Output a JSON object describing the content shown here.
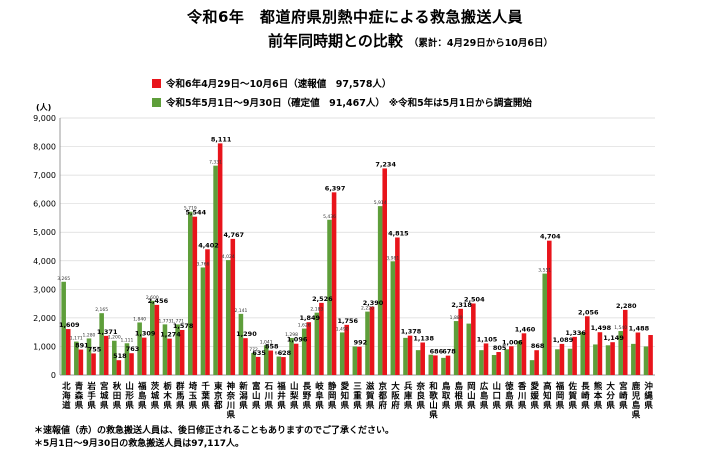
{
  "title_line1": "令和6年　都道府県別熱中症による救急搬送人員",
  "title_line2": "前年同時期との比較",
  "title_note": "（累計：4月29日から10月6日）",
  "chart_data": {
    "type": "bar",
    "ylabel": "(人)",
    "ylim": [
      0,
      9000
    ],
    "yticks": [
      "0",
      "1,000",
      "2,000",
      "3,000",
      "4,000",
      "5,000",
      "6,000",
      "7,000",
      "8,000",
      "9,000"
    ],
    "categories": [
      "北海道",
      "青森県",
      "岩手県",
      "宮城県",
      "秋田県",
      "山形県",
      "福島県",
      "茨城県",
      "栃木県",
      "群馬県",
      "埼玉県",
      "千葉県",
      "東京都",
      "神奈川県",
      "新潟県",
      "富山県",
      "石川県",
      "福井県",
      "山梨県",
      "長野県",
      "岐阜県",
      "静岡県",
      "愛知県",
      "三重県",
      "滋賀県",
      "京都府",
      "大阪府",
      "兵庫県",
      "奈良県",
      "和歌山県",
      "鳥取県",
      "島根県",
      "岡山県",
      "広島県",
      "山口県",
      "徳島県",
      "香川県",
      "愛媛県",
      "高知県",
      "福岡県",
      "佐賀県",
      "長崎県",
      "熊本県",
      "大分県",
      "宮崎県",
      "鹿児島県",
      "沖縄県"
    ],
    "series": [
      {
        "name": "令和6年4月29日～10月6日（速報値　97,578人）",
        "color": "#e8141b",
        "values": [
          1609,
          891,
          755,
          1371,
          518,
          763,
          1309,
          2456,
          1274,
          1578,
          5544,
          4402,
          8111,
          4767,
          1290,
          635,
          858,
          628,
          1096,
          1849,
          2526,
          6397,
          1756,
          992,
          2390,
          7234,
          4815,
          1378,
          1138,
          686,
          678,
          2318,
          2504,
          1105,
          805,
          1006,
          1460,
          868,
          4704,
          1089,
          1336,
          2056,
          1498,
          1149,
          2280,
          1488,
          1400
        ],
        "labels": [
          "1,609",
          "891",
          "755",
          "1,371",
          "518",
          "763",
          "1,309",
          "2,456",
          "1,274",
          "1,578",
          "5,544",
          "4,402",
          "8,111",
          "4,767",
          "1,290",
          "635",
          "858",
          "628",
          "1,096",
          "1,849",
          "2,526",
          "6,397",
          "1,756",
          "992",
          "2,390",
          "7,234",
          "4,815",
          "1,378",
          "1,138",
          "686",
          "678",
          "2,318",
          "2,504",
          "1,105",
          "805",
          "1,006",
          "1,460",
          "868",
          "4,704",
          "1,089",
          "1,336",
          "2,056",
          "1,498",
          "1,149",
          "2,280",
          "1,488",
          ""
        ]
      },
      {
        "name": "令和5年5月1日～9月30日（確定値　91,467人）",
        "color": "#5e9e3a",
        "values": [
          3265,
          1171,
          1280,
          2165,
          1200,
          1111,
          1840,
          2600,
          1773,
          1771,
          5719,
          3766,
          7331,
          4024,
          2141,
          772,
          1041,
          647,
          1298,
          1626,
          2183,
          5436,
          1490,
          1000,
          2220,
          5914,
          3981,
          1300,
          870,
          710,
          600,
          1889,
          1800,
          870,
          700,
          900,
          1197,
          520,
          3551,
          900,
          920,
          1500,
          1070,
          1040,
          1540,
          1090,
          1000
        ],
        "labels": [
          "3,265",
          "1,171",
          "1,280",
          "2,165",
          "1,200",
          "1,111",
          "1,840",
          "2,600",
          "1,773",
          "1,771",
          "5,719",
          "3,766",
          "7,331",
          "4,024",
          "2,141",
          "772",
          "1,041",
          "647",
          "1,298",
          "1,626",
          "2,183",
          "5,436",
          "1,490",
          "",
          "2,220",
          "5,914",
          "3,981",
          "",
          "",
          "",
          "",
          "1,889",
          "",
          "",
          "",
          "",
          "",
          "",
          "3,551",
          "",
          "",
          "",
          "",
          "",
          "1,540",
          "",
          ""
        ]
      }
    ],
    "legend_note": "※令和5年は5月1日から調査開始"
  },
  "footnotes": [
    "＊速報値（赤）の救急搬送人員は、後日修正されることもありますのでご了承ください。",
    "＊5月1日～9月30日の救急搬送人員は97,117人。"
  ]
}
